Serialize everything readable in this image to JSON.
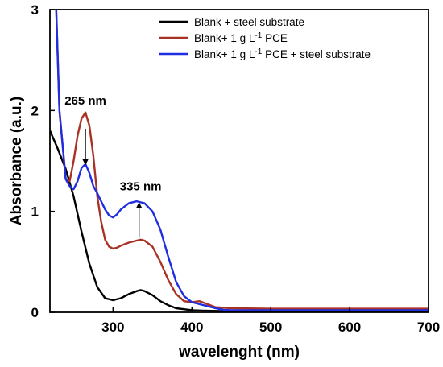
{
  "chart_data": {
    "type": "line",
    "xlabel": "wavelenght (nm)",
    "ylabel": "Absorbance (a.u.)",
    "xlim": [
      220,
      700
    ],
    "ylim": [
      0,
      3
    ],
    "xticks": [
      300,
      400,
      500,
      600,
      700
    ],
    "yticks": [
      0,
      1,
      2,
      3
    ],
    "grid": false,
    "legend_position": "top-right",
    "series": [
      {
        "name": "Blank + steel substrate",
        "color": "#000000",
        "x": [
          220,
          230,
          240,
          250,
          260,
          270,
          280,
          290,
          300,
          310,
          320,
          330,
          335,
          340,
          350,
          360,
          370,
          380,
          390,
          400,
          420,
          450,
          500,
          600,
          700
        ],
        "y": [
          1.8,
          1.62,
          1.42,
          1.15,
          0.8,
          0.48,
          0.25,
          0.14,
          0.12,
          0.14,
          0.18,
          0.21,
          0.22,
          0.21,
          0.17,
          0.11,
          0.07,
          0.04,
          0.03,
          0.02,
          0.015,
          0.01,
          0.01,
          0.01,
          0.01
        ]
      },
      {
        "name": "Blank+ 1 g L-1 PCE",
        "color": "#a93226",
        "x": [
          228,
          232,
          240,
          245,
          250,
          255,
          260,
          265,
          270,
          275,
          280,
          285,
          290,
          295,
          300,
          305,
          310,
          320,
          330,
          335,
          340,
          350,
          360,
          370,
          380,
          390,
          400,
          410,
          420,
          430,
          450,
          500,
          600,
          700
        ],
        "y": [
          3.0,
          2.0,
          1.32,
          1.3,
          1.5,
          1.75,
          1.92,
          1.98,
          1.85,
          1.55,
          1.15,
          0.9,
          0.72,
          0.65,
          0.63,
          0.64,
          0.66,
          0.69,
          0.71,
          0.72,
          0.71,
          0.65,
          0.5,
          0.32,
          0.18,
          0.11,
          0.1,
          0.11,
          0.08,
          0.05,
          0.04,
          0.035,
          0.035,
          0.035
        ]
      },
      {
        "name": "Blank+ 1 g L-1 PCE + steel substrate",
        "color": "#1f2ee0",
        "x": [
          228,
          232,
          240,
          245,
          250,
          255,
          260,
          265,
          270,
          275,
          280,
          285,
          290,
          295,
          300,
          305,
          310,
          320,
          330,
          335,
          340,
          350,
          360,
          370,
          380,
          390,
          400,
          410,
          420,
          430,
          440,
          450,
          500,
          600,
          700
        ],
        "y": [
          3.0,
          2.0,
          1.32,
          1.25,
          1.22,
          1.3,
          1.43,
          1.47,
          1.38,
          1.25,
          1.18,
          1.1,
          1.02,
          0.96,
          0.94,
          0.97,
          1.02,
          1.08,
          1.1,
          1.09,
          1.08,
          1.0,
          0.82,
          0.55,
          0.3,
          0.16,
          0.1,
          0.08,
          0.06,
          0.04,
          0.025,
          0.02,
          0.02,
          0.02,
          0.02
        ]
      }
    ],
    "annotations": [
      {
        "text": "265 nm",
        "x": 265,
        "y": 2.06,
        "arrow_from": [
          265,
          1.82
        ],
        "arrow_to": [
          265,
          1.49
        ]
      },
      {
        "text": "335 nm",
        "x": 335,
        "y": 1.21,
        "arrow_from": [
          333,
          0.74
        ],
        "arrow_to": [
          333,
          1.06
        ]
      }
    ]
  }
}
